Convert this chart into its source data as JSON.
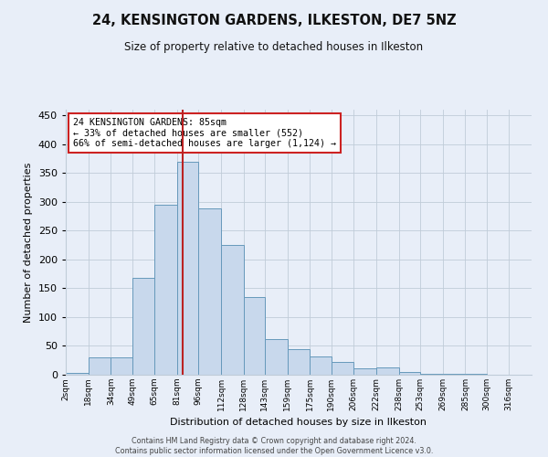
{
  "title": "24, KENSINGTON GARDENS, ILKESTON, DE7 5NZ",
  "subtitle": "Size of property relative to detached houses in Ilkeston",
  "xlabel": "Distribution of detached houses by size in Ilkeston",
  "ylabel": "Number of detached properties",
  "categories": [
    "2sqm",
    "18sqm",
    "34sqm",
    "49sqm",
    "65sqm",
    "81sqm",
    "96sqm",
    "112sqm",
    "128sqm",
    "143sqm",
    "159sqm",
    "175sqm",
    "190sqm",
    "206sqm",
    "222sqm",
    "238sqm",
    "253sqm",
    "269sqm",
    "285sqm",
    "300sqm",
    "316sqm"
  ],
  "heights": [
    3,
    30,
    30,
    168,
    295,
    370,
    289,
    226,
    135,
    62,
    44,
    31,
    23,
    11,
    13,
    5,
    2,
    1,
    1,
    0,
    0
  ],
  "bin_edges": [
    2,
    18,
    34,
    49,
    65,
    81,
    96,
    112,
    128,
    143,
    159,
    175,
    190,
    206,
    222,
    238,
    253,
    269,
    285,
    300,
    316,
    332
  ],
  "bar_color": "#c8d8ec",
  "bar_edge_color": "#6699bb",
  "vline_x": 85,
  "vline_color": "#bb2222",
  "annotation_text": "24 KENSINGTON GARDENS: 85sqm\n← 33% of detached houses are smaller (552)\n66% of semi-detached houses are larger (1,124) →",
  "annotation_box_color": "#ffffff",
  "annotation_box_edge": "#cc2222",
  "ylim": [
    0,
    460
  ],
  "yticks": [
    0,
    50,
    100,
    150,
    200,
    250,
    300,
    350,
    400,
    450
  ],
  "footer_line1": "Contains HM Land Registry data © Crown copyright and database right 2024.",
  "footer_line2": "Contains public sector information licensed under the Open Government Licence v3.0.",
  "bg_color": "#e8eef8",
  "plot_bg_color": "#e8eef8",
  "grid_color": "#c0ccd8"
}
